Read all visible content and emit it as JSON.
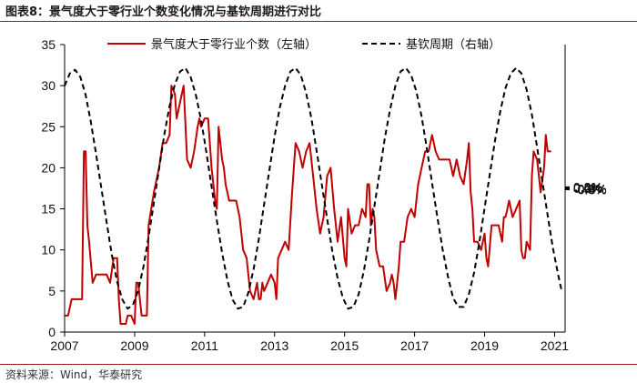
{
  "header": {
    "title": "图表8：景气度大于零行业个数变化情况与基钦周期进行对比"
  },
  "source": {
    "text": "资料来源：Wind，华泰研究"
  },
  "colors": {
    "series_red": "#c00000",
    "series_black": "#000000",
    "accent_rule": "#9a1c1c"
  },
  "chart_data": {
    "type": "line",
    "xlim": [
      2007,
      2021.3
    ],
    "x_ticks": [
      "2007",
      "2009",
      "2011",
      "2013",
      "2015",
      "2017",
      "2019",
      "2021"
    ],
    "y_left": {
      "lim": [
        0,
        35
      ],
      "ticks": [
        "0",
        "5",
        "10",
        "15",
        "20",
        "25",
        "30",
        "35"
      ]
    },
    "y_right": {
      "lim": [
        -0.8,
        0.8
      ],
      "ticks": [
        "-0.8%",
        "-0.6%",
        "-0.4%",
        "-0.2%",
        "0.0%",
        "0.2%",
        "0.4%",
        "0.6%",
        "0.8%"
      ]
    },
    "legend_position": "top",
    "series": [
      {
        "name": "景气度大于零行业个数（左轴）",
        "axis": "left",
        "style": "solid",
        "color": "#c00000",
        "points": [
          [
            2007.0,
            2
          ],
          [
            2007.1,
            2
          ],
          [
            2007.2,
            4
          ],
          [
            2007.3,
            4
          ],
          [
            2007.4,
            4
          ],
          [
            2007.5,
            4
          ],
          [
            2007.55,
            22
          ],
          [
            2007.6,
            22
          ],
          [
            2007.65,
            13
          ],
          [
            2007.7,
            11
          ],
          [
            2007.8,
            6
          ],
          [
            2007.9,
            7
          ],
          [
            2008.0,
            7
          ],
          [
            2008.2,
            7
          ],
          [
            2008.3,
            6
          ],
          [
            2008.4,
            9
          ],
          [
            2008.5,
            9
          ],
          [
            2008.55,
            4
          ],
          [
            2008.6,
            1
          ],
          [
            2008.75,
            1
          ],
          [
            2008.8,
            2
          ],
          [
            2008.9,
            2
          ],
          [
            2009.0,
            1
          ],
          [
            2009.05,
            6
          ],
          [
            2009.1,
            6
          ],
          [
            2009.2,
            2
          ],
          [
            2009.35,
            2
          ],
          [
            2009.4,
            13
          ],
          [
            2009.55,
            17
          ],
          [
            2009.7,
            20
          ],
          [
            2009.8,
            23
          ],
          [
            2009.85,
            23
          ],
          [
            2009.9,
            23
          ],
          [
            2010.0,
            24
          ],
          [
            2010.05,
            30
          ],
          [
            2010.15,
            29
          ],
          [
            2010.2,
            26
          ],
          [
            2010.3,
            28
          ],
          [
            2010.4,
            30
          ],
          [
            2010.5,
            21
          ],
          [
            2010.6,
            20
          ],
          [
            2010.7,
            22
          ],
          [
            2010.8,
            25
          ],
          [
            2010.85,
            26
          ],
          [
            2010.9,
            25
          ],
          [
            2011.0,
            26
          ],
          [
            2011.1,
            26
          ],
          [
            2011.2,
            20
          ],
          [
            2011.3,
            16
          ],
          [
            2011.35,
            15
          ],
          [
            2011.4,
            25
          ],
          [
            2011.5,
            21
          ],
          [
            2011.55,
            20
          ],
          [
            2011.6,
            18
          ],
          [
            2011.7,
            16
          ],
          [
            2011.8,
            16
          ],
          [
            2011.9,
            16
          ],
          [
            2012.0,
            14
          ],
          [
            2012.1,
            10
          ],
          [
            2012.2,
            9
          ],
          [
            2012.3,
            5
          ],
          [
            2012.4,
            4
          ],
          [
            2012.5,
            6
          ],
          [
            2012.55,
            4
          ],
          [
            2012.6,
            4
          ],
          [
            2012.65,
            6
          ],
          [
            2012.7,
            5
          ],
          [
            2012.8,
            6
          ],
          [
            2012.9,
            7
          ],
          [
            2013.0,
            6
          ],
          [
            2013.05,
            4
          ],
          [
            2013.1,
            9
          ],
          [
            2013.2,
            10
          ],
          [
            2013.3,
            11
          ],
          [
            2013.4,
            10
          ],
          [
            2013.5,
            17
          ],
          [
            2013.6,
            23
          ],
          [
            2013.7,
            22
          ],
          [
            2013.8,
            20
          ],
          [
            2013.9,
            22
          ],
          [
            2014.0,
            23
          ],
          [
            2014.1,
            19
          ],
          [
            2014.2,
            15
          ],
          [
            2014.3,
            12
          ],
          [
            2014.4,
            14
          ],
          [
            2014.5,
            19
          ],
          [
            2014.6,
            20
          ],
          [
            2014.7,
            15
          ],
          [
            2014.8,
            11
          ],
          [
            2014.9,
            14
          ],
          [
            2015.0,
            9
          ],
          [
            2015.05,
            8
          ],
          [
            2015.1,
            15
          ],
          [
            2015.2,
            12
          ],
          [
            2015.3,
            13
          ],
          [
            2015.4,
            13
          ],
          [
            2015.5,
            15
          ],
          [
            2015.6,
            14
          ],
          [
            2015.65,
            18
          ],
          [
            2015.7,
            18
          ],
          [
            2015.75,
            13
          ],
          [
            2015.8,
            15
          ],
          [
            2015.85,
            14
          ],
          [
            2015.9,
            10
          ],
          [
            2016.0,
            8
          ],
          [
            2016.1,
            8
          ],
          [
            2016.2,
            5
          ],
          [
            2016.3,
            6
          ],
          [
            2016.35,
            7
          ],
          [
            2016.4,
            6
          ],
          [
            2016.45,
            4
          ],
          [
            2016.5,
            6
          ],
          [
            2016.55,
            8
          ],
          [
            2016.6,
            11
          ],
          [
            2016.7,
            11
          ],
          [
            2016.8,
            14
          ],
          [
            2016.9,
            15
          ],
          [
            2017.0,
            14
          ],
          [
            2017.1,
            18
          ],
          [
            2017.2,
            20
          ],
          [
            2017.3,
            22
          ],
          [
            2017.4,
            22
          ],
          [
            2017.5,
            24
          ],
          [
            2017.6,
            22
          ],
          [
            2017.7,
            21
          ],
          [
            2017.8,
            21
          ],
          [
            2017.9,
            21
          ],
          [
            2018.0,
            21
          ],
          [
            2018.1,
            19
          ],
          [
            2018.2,
            21
          ],
          [
            2018.3,
            19
          ],
          [
            2018.4,
            18
          ],
          [
            2018.5,
            21
          ],
          [
            2018.55,
            23
          ],
          [
            2018.6,
            17
          ],
          [
            2018.65,
            15
          ],
          [
            2018.7,
            11
          ],
          [
            2018.8,
            11
          ],
          [
            2018.9,
            10
          ],
          [
            2019.0,
            12
          ],
          [
            2019.05,
            9
          ],
          [
            2019.1,
            8
          ],
          [
            2019.2,
            13
          ],
          [
            2019.3,
            13
          ],
          [
            2019.4,
            13
          ],
          [
            2019.5,
            11
          ],
          [
            2019.55,
            14
          ],
          [
            2019.6,
            14
          ],
          [
            2019.7,
            16
          ],
          [
            2019.8,
            14
          ],
          [
            2019.9,
            15
          ],
          [
            2020.0,
            16
          ],
          [
            2020.05,
            10
          ],
          [
            2020.1,
            9
          ],
          [
            2020.15,
            9
          ],
          [
            2020.2,
            11
          ],
          [
            2020.3,
            10
          ],
          [
            2020.35,
            19
          ],
          [
            2020.4,
            22
          ],
          [
            2020.5,
            21
          ],
          [
            2020.55,
            19
          ],
          [
            2020.6,
            17
          ],
          [
            2020.7,
            20
          ],
          [
            2020.75,
            24
          ],
          [
            2020.8,
            22
          ],
          [
            2020.9,
            22
          ]
        ]
      },
      {
        "name": "基钦周期（右轴）",
        "axis": "right",
        "style": "dashed",
        "color": "#000000",
        "points": [
          [
            2007.0,
            0.57
          ],
          [
            2007.15,
            0.64
          ],
          [
            2007.3,
            0.66
          ],
          [
            2007.45,
            0.62
          ],
          [
            2007.6,
            0.52
          ],
          [
            2007.75,
            0.37
          ],
          [
            2007.9,
            0.19
          ],
          [
            2008.05,
            0.0
          ],
          [
            2008.2,
            -0.19
          ],
          [
            2008.35,
            -0.37
          ],
          [
            2008.5,
            -0.52
          ],
          [
            2008.65,
            -0.62
          ],
          [
            2008.8,
            -0.67
          ],
          [
            2008.95,
            -0.65
          ],
          [
            2009.1,
            -0.57
          ],
          [
            2009.25,
            -0.44
          ],
          [
            2009.4,
            -0.27
          ],
          [
            2009.55,
            -0.08
          ],
          [
            2009.7,
            0.11
          ],
          [
            2009.85,
            0.3
          ],
          [
            2010.0,
            0.46
          ],
          [
            2010.15,
            0.58
          ],
          [
            2010.3,
            0.65
          ],
          [
            2010.45,
            0.67
          ],
          [
            2010.6,
            0.62
          ],
          [
            2010.75,
            0.52
          ],
          [
            2010.9,
            0.38
          ],
          [
            2011.05,
            0.2
          ],
          [
            2011.2,
            0.01
          ],
          [
            2011.35,
            -0.18
          ],
          [
            2011.5,
            -0.36
          ],
          [
            2011.65,
            -0.51
          ],
          [
            2011.8,
            -0.62
          ],
          [
            2011.95,
            -0.67
          ],
          [
            2012.1,
            -0.66
          ],
          [
            2012.25,
            -0.58
          ],
          [
            2012.4,
            -0.45
          ],
          [
            2012.55,
            -0.28
          ],
          [
            2012.7,
            -0.09
          ],
          [
            2012.85,
            0.1
          ],
          [
            2013.0,
            0.29
          ],
          [
            2013.15,
            0.45
          ],
          [
            2013.3,
            0.57
          ],
          [
            2013.45,
            0.65
          ],
          [
            2013.6,
            0.67
          ],
          [
            2013.75,
            0.63
          ],
          [
            2013.9,
            0.53
          ],
          [
            2014.05,
            0.39
          ],
          [
            2014.2,
            0.21
          ],
          [
            2014.35,
            0.02
          ],
          [
            2014.5,
            -0.17
          ],
          [
            2014.65,
            -0.35
          ],
          [
            2014.8,
            -0.5
          ],
          [
            2014.95,
            -0.61
          ],
          [
            2015.1,
            -0.67
          ],
          [
            2015.25,
            -0.66
          ],
          [
            2015.4,
            -0.59
          ],
          [
            2015.55,
            -0.46
          ],
          [
            2015.7,
            -0.29
          ],
          [
            2015.85,
            -0.1
          ],
          [
            2016.0,
            0.09
          ],
          [
            2016.15,
            0.28
          ],
          [
            2016.3,
            0.44
          ],
          [
            2016.45,
            0.57
          ],
          [
            2016.6,
            0.65
          ],
          [
            2016.75,
            0.67
          ],
          [
            2016.9,
            0.63
          ],
          [
            2017.05,
            0.54
          ],
          [
            2017.2,
            0.4
          ],
          [
            2017.35,
            0.22
          ],
          [
            2017.5,
            0.03
          ],
          [
            2017.65,
            -0.16
          ],
          [
            2017.8,
            -0.34
          ],
          [
            2017.95,
            -0.49
          ],
          [
            2018.1,
            -0.61
          ],
          [
            2018.25,
            -0.66
          ],
          [
            2018.4,
            -0.66
          ],
          [
            2018.55,
            -0.59
          ],
          [
            2018.7,
            -0.47
          ],
          [
            2018.85,
            -0.3
          ],
          [
            2019.0,
            -0.11
          ],
          [
            2019.15,
            0.08
          ],
          [
            2019.3,
            0.27
          ],
          [
            2019.45,
            0.43
          ],
          [
            2019.6,
            0.56
          ],
          [
            2019.75,
            0.64
          ],
          [
            2019.9,
            0.67
          ],
          [
            2020.05,
            0.64
          ],
          [
            2020.2,
            0.55
          ],
          [
            2020.35,
            0.41
          ],
          [
            2020.5,
            0.23
          ],
          [
            2020.65,
            0.04
          ],
          [
            2020.8,
            -0.15
          ],
          [
            2020.95,
            -0.33
          ],
          [
            2021.1,
            -0.48
          ],
          [
            2021.2,
            -0.57
          ]
        ]
      }
    ]
  }
}
